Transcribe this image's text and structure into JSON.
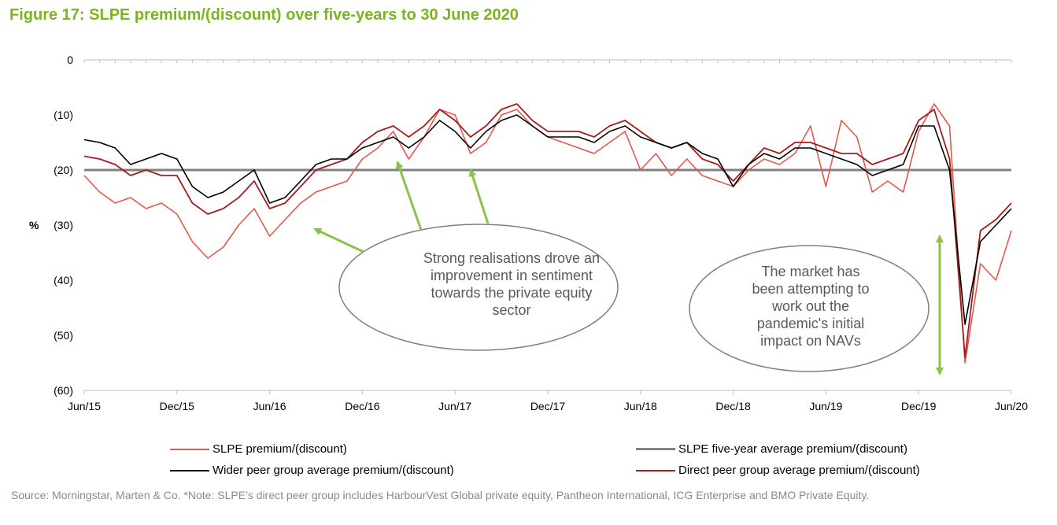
{
  "figure_title": "Figure 17: SLPE premium/(discount) over five-years to 30 June 2020",
  "source_note": "Source: Morningstar, Marten & Co. *Note: SLPE’s direct peer group includes HarbourVest Global private equity, Pantheon International, ICG Enterprise and BMO Private Equity.",
  "annotations": [
    {
      "text_lines": [
        "Strong realisations drove an",
        "improvement in sentiment",
        "towards the private equity",
        "sector"
      ]
    },
    {
      "text_lines": [
        "The market has",
        "been attempting to",
        "work out the",
        "pandemic's initial",
        "impact on NAVs"
      ]
    }
  ],
  "colors": {
    "title": "#7ab51d",
    "slpe": "#e8564b",
    "average": "#808080",
    "wider": "#000000",
    "direct": "#a81c1c",
    "arrow": "#8bc34a",
    "grid_axis": "#bfbfbf",
    "ellipse_stroke": "#7f7f7f"
  },
  "chart_data": {
    "type": "line",
    "title": "Figure 17: SLPE premium/(discount) over five-years to 30 June 2020",
    "ylabel": "%",
    "xlabel": "",
    "ylim": [
      -60,
      0
    ],
    "xlim": [
      "2015-06",
      "2020-06"
    ],
    "y_ticks": [
      {
        "value": 0,
        "label": "0"
      },
      {
        "value": -10,
        "label": "(10)"
      },
      {
        "value": -20,
        "label": "(20)"
      },
      {
        "value": -30,
        "label": "(30)"
      },
      {
        "value": -40,
        "label": "(40)"
      },
      {
        "value": -50,
        "label": "(50)"
      },
      {
        "value": -60,
        "label": "(60)"
      }
    ],
    "x_ticks": [
      {
        "value": "2015-06",
        "label": "Jun/15"
      },
      {
        "value": "2015-12",
        "label": "Dec/15"
      },
      {
        "value": "2016-06",
        "label": "Jun/16"
      },
      {
        "value": "2016-12",
        "label": "Dec/16"
      },
      {
        "value": "2017-06",
        "label": "Jun/17"
      },
      {
        "value": "2017-12",
        "label": "Dec/17"
      },
      {
        "value": "2018-06",
        "label": "Jun/18"
      },
      {
        "value": "2018-12",
        "label": "Dec/18"
      },
      {
        "value": "2019-06",
        "label": "Jun/19"
      },
      {
        "value": "2019-12",
        "label": "Dec/19"
      },
      {
        "value": "2020-06",
        "label": "Jun/20"
      }
    ],
    "grid": false,
    "legend_position": "bottom",
    "series": [
      {
        "name": "SLPE premium/(discount)",
        "color": "#e8564b",
        "x": [
          "2015-06",
          "2015-07",
          "2015-08",
          "2015-09",
          "2015-10",
          "2015-11",
          "2015-12",
          "2016-01",
          "2016-02",
          "2016-03",
          "2016-04",
          "2016-05",
          "2016-06",
          "2016-07",
          "2016-08",
          "2016-09",
          "2016-10",
          "2016-11",
          "2016-12",
          "2017-01",
          "2017-02",
          "2017-03",
          "2017-04",
          "2017-05",
          "2017-06",
          "2017-07",
          "2017-08",
          "2017-09",
          "2017-10",
          "2017-11",
          "2017-12",
          "2018-01",
          "2018-02",
          "2018-03",
          "2018-04",
          "2018-05",
          "2018-06",
          "2018-07",
          "2018-08",
          "2018-09",
          "2018-10",
          "2018-11",
          "2018-12",
          "2019-01",
          "2019-02",
          "2019-03",
          "2019-04",
          "2019-05",
          "2019-06",
          "2019-07",
          "2019-08",
          "2019-09",
          "2019-10",
          "2019-11",
          "2019-12",
          "2020-01",
          "2020-02",
          "2020-03",
          "2020-04",
          "2020-05",
          "2020-06"
        ],
        "values": [
          -21,
          -24,
          -26,
          -25,
          -27,
          -26,
          -28,
          -33,
          -36,
          -34,
          -30,
          -27,
          -32,
          -29,
          -26,
          -24,
          -23,
          -22,
          -18,
          -16,
          -13,
          -18,
          -14,
          -9,
          -10,
          -17,
          -15,
          -10,
          -9,
          -12,
          -14,
          -15,
          -16,
          -17,
          -15,
          -13,
          -20,
          -17,
          -21,
          -18,
          -21,
          -22,
          -23,
          -20,
          -18,
          -19,
          -17,
          -12,
          -23,
          -11,
          -14,
          -24,
          -22,
          -24,
          -13,
          -8,
          -12,
          -55,
          -37,
          -40,
          -31
        ]
      },
      {
        "name": "SLPE five-year average premium/(discount)",
        "color": "#808080",
        "x": [
          "2015-06",
          "2020-06"
        ],
        "values": [
          -20,
          -20
        ]
      },
      {
        "name": "Wider peer group average premium/(discount)",
        "color": "#000000",
        "x": [
          "2015-06",
          "2015-07",
          "2015-08",
          "2015-09",
          "2015-10",
          "2015-11",
          "2015-12",
          "2016-01",
          "2016-02",
          "2016-03",
          "2016-04",
          "2016-05",
          "2016-06",
          "2016-07",
          "2016-08",
          "2016-09",
          "2016-10",
          "2016-11",
          "2016-12",
          "2017-01",
          "2017-02",
          "2017-03",
          "2017-04",
          "2017-05",
          "2017-06",
          "2017-07",
          "2017-08",
          "2017-09",
          "2017-10",
          "2017-11",
          "2017-12",
          "2018-01",
          "2018-02",
          "2018-03",
          "2018-04",
          "2018-05",
          "2018-06",
          "2018-07",
          "2018-08",
          "2018-09",
          "2018-10",
          "2018-11",
          "2018-12",
          "2019-01",
          "2019-02",
          "2019-03",
          "2019-04",
          "2019-05",
          "2019-06",
          "2019-07",
          "2019-08",
          "2019-09",
          "2019-10",
          "2019-11",
          "2019-12",
          "2020-01",
          "2020-02",
          "2020-03",
          "2020-04",
          "2020-05",
          "2020-06"
        ],
        "values": [
          -14.5,
          -15,
          -16,
          -19,
          -18,
          -17,
          -18,
          -23,
          -25,
          -24,
          -22,
          -20,
          -26,
          -25,
          -22,
          -19,
          -18,
          -18,
          -16,
          -15,
          -14,
          -16,
          -14,
          -11,
          -13,
          -16,
          -13,
          -11,
          -10,
          -12,
          -14,
          -14,
          -14,
          -15,
          -13,
          -12,
          -14,
          -15,
          -16,
          -15,
          -17,
          -18,
          -23,
          -19,
          -17,
          -18,
          -16,
          -16,
          -17,
          -18,
          -19,
          -21,
          -20,
          -19,
          -12,
          -12,
          -20,
          -48,
          -33,
          -30,
          -27
        ]
      },
      {
        "name": "Direct peer group average premium/(discount)",
        "color": "#a81c1c",
        "x": [
          "2015-06",
          "2015-07",
          "2015-08",
          "2015-09",
          "2015-10",
          "2015-11",
          "2015-12",
          "2016-01",
          "2016-02",
          "2016-03",
          "2016-04",
          "2016-05",
          "2016-06",
          "2016-07",
          "2016-08",
          "2016-09",
          "2016-10",
          "2016-11",
          "2016-12",
          "2017-01",
          "2017-02",
          "2017-03",
          "2017-04",
          "2017-05",
          "2017-06",
          "2017-07",
          "2017-08",
          "2017-09",
          "2017-10",
          "2017-11",
          "2017-12",
          "2018-01",
          "2018-02",
          "2018-03",
          "2018-04",
          "2018-05",
          "2018-06",
          "2018-07",
          "2018-08",
          "2018-09",
          "2018-10",
          "2018-11",
          "2018-12",
          "2019-01",
          "2019-02",
          "2019-03",
          "2019-04",
          "2019-05",
          "2019-06",
          "2019-07",
          "2019-08",
          "2019-09",
          "2019-10",
          "2019-11",
          "2019-12",
          "2020-01",
          "2020-02",
          "2020-03",
          "2020-04",
          "2020-05",
          "2020-06"
        ],
        "values": [
          -17.5,
          -18,
          -19,
          -21,
          -20,
          -21,
          -21,
          -26,
          -28,
          -27,
          -25,
          -22,
          -27,
          -26,
          -23,
          -20,
          -19,
          -18,
          -15,
          -13,
          -12,
          -14,
          -12,
          -9,
          -11,
          -14,
          -12,
          -9,
          -8,
          -11,
          -13,
          -13,
          -13,
          -14,
          -12,
          -11,
          -13,
          -15,
          -16,
          -15,
          -18,
          -19,
          -22,
          -19,
          -16,
          -17,
          -15,
          -15,
          -16,
          -17,
          -17,
          -19,
          -18,
          -17,
          -11,
          -9,
          -18,
          -54,
          -31,
          -29,
          -26
        ]
      }
    ]
  },
  "legend": [
    {
      "label": "SLPE premium/(discount)",
      "color": "#e8564b"
    },
    {
      "label": "SLPE five-year average premium/(discount)",
      "color": "#808080"
    },
    {
      "label": "Wider peer group average premium/(discount)",
      "color": "#000000"
    },
    {
      "label": "Direct peer group average premium/(discount)",
      "color": "#a81c1c"
    }
  ]
}
